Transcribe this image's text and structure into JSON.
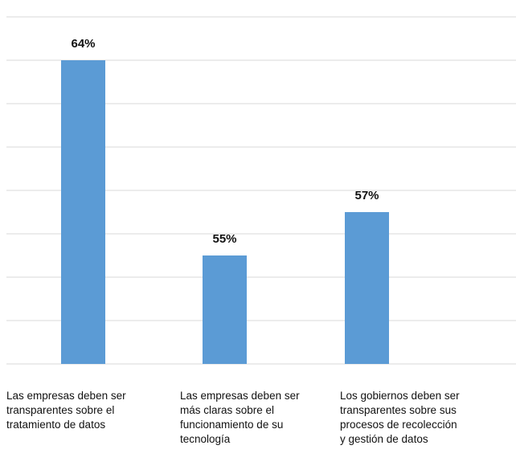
{
  "chart_data": {
    "type": "bar",
    "categories": [
      "Las empresas deben ser\ntransparentes sobre el\ntratamiento de datos",
      "Las empresas deben ser\nmás claras sobre el\nfuncionamiento de su\n tecnología",
      "Los gobiernos deben ser\ntransparentes sobre sus\nprocesos de recolección\ny gestión de datos"
    ],
    "values": [
      64,
      55,
      57
    ],
    "data_labels": [
      "64%",
      "55%",
      "57%"
    ],
    "title": "",
    "xlabel": "",
    "ylabel": "",
    "ylim": [
      50,
      66
    ],
    "grid_step": 2,
    "grid": true,
    "bar_color": "#5b9bd5",
    "grid_color": "#d9d9d9"
  }
}
